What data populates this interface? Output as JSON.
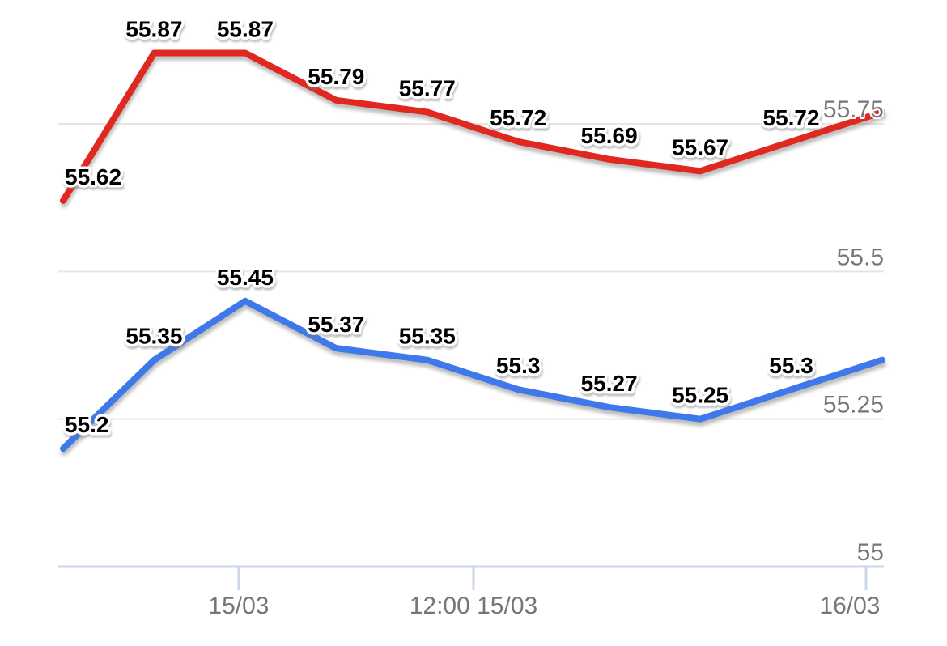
{
  "chart_data": {
    "type": "line",
    "title": "",
    "xlabel": "",
    "ylabel": "",
    "grid": true,
    "legend": "none",
    "background_color": "#ffffff",
    "yaxis": {
      "side": "right",
      "min": 55,
      "max": 55.95,
      "ticks": [
        55,
        55.25,
        55.5,
        55.75
      ],
      "tick_labels": [
        "55",
        "55.25",
        "55.5",
        "55.75"
      ],
      "label_color": "#767676",
      "gridline_color": "#e6e6e6"
    },
    "xaxis": {
      "axis_color": "#ccd6eb",
      "label_color": "#767676",
      "ticks": [
        {
          "pos": 0.2186,
          "label": "15/03",
          "label_dx": 0
        },
        {
          "pos": 0.5029,
          "label": "12:00 15/03",
          "label_dx": 0
        },
        {
          "pos": 0.9784,
          "label": "16/03",
          "label_dx": -20
        }
      ]
    },
    "series": [
      {
        "name": "red",
        "color": "#e02820",
        "values": [
          55.62,
          55.87,
          55.87,
          55.79,
          55.77,
          55.72,
          55.69,
          55.67,
          55.72,
          55.77
        ],
        "labels": [
          "55.62",
          "55.87",
          "55.87",
          "55.79",
          "55.77",
          "55.72",
          "55.69",
          "55.67",
          "55.72",
          null
        ]
      },
      {
        "name": "blue",
        "color": "#3e78ea",
        "values": [
          55.2,
          55.35,
          55.45,
          55.37,
          55.35,
          55.3,
          55.27,
          55.25,
          55.3,
          55.35
        ],
        "labels": [
          "55.2",
          "55.35",
          "55.45",
          "55.37",
          "55.35",
          "55.3",
          "55.27",
          "55.25",
          "55.3",
          null
        ]
      }
    ],
    "data_label_color": "#000000"
  }
}
